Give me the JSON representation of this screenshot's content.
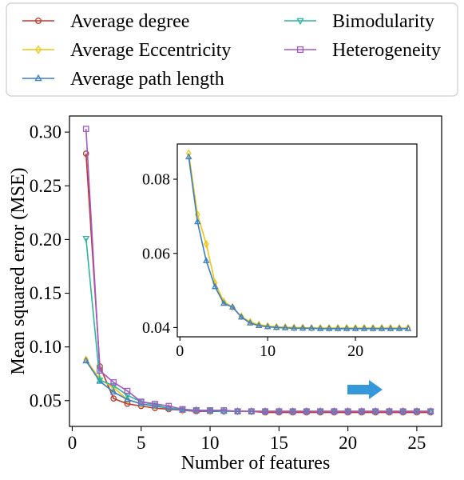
{
  "chart_data": [
    {
      "type": "line",
      "role": "main",
      "xlabel": "Number of features",
      "ylabel": "Mean squared error (MSE)",
      "xlim": [
        -0.2,
        26.8
      ],
      "ylim": [
        0.026,
        0.315
      ],
      "xticks": [
        0,
        5,
        10,
        15,
        20,
        25
      ],
      "yticks": [
        0.05,
        0.1,
        0.15,
        0.2,
        0.25,
        0.3
      ],
      "ytick_labels": [
        "0.05",
        "0.10",
        "0.15",
        "0.20",
        "0.25",
        "0.30"
      ],
      "grid": false,
      "legend_position": "above plot, two columns",
      "x": [
        1,
        2,
        3,
        4,
        5,
        6,
        7,
        8,
        9,
        10,
        11,
        12,
        13,
        14,
        15,
        16,
        17,
        18,
        19,
        20,
        21,
        22,
        23,
        24,
        25,
        26
      ],
      "series": [
        {
          "name": "Average degree",
          "color": "#c0392b",
          "marker": "circle",
          "values": [
            0.28,
            0.082,
            0.052,
            0.047,
            0.045,
            0.043,
            0.042,
            0.041,
            0.04,
            0.04,
            0.04,
            0.04,
            0.04,
            0.039,
            0.039,
            0.039,
            0.039,
            0.039,
            0.039,
            0.039,
            0.039,
            0.039,
            0.039,
            0.039,
            0.039,
            0.039
          ]
        },
        {
          "name": "Average Eccentricity",
          "color": "#f1c40f",
          "marker": "diamond",
          "values": [
            0.088,
            0.07,
            0.062,
            0.051,
            0.047,
            0.045,
            0.043,
            0.041,
            0.041,
            0.04,
            0.04,
            0.04,
            0.04,
            0.04,
            0.04,
            0.04,
            0.04,
            0.04,
            0.04,
            0.04,
            0.04,
            0.04,
            0.04,
            0.04,
            0.04,
            0.04
          ]
        },
        {
          "name": "Average path length",
          "color": "#3a7fc4",
          "marker": "triangle-up",
          "values": [
            0.087,
            0.068,
            0.058,
            0.051,
            0.047,
            0.045,
            0.043,
            0.041,
            0.041,
            0.04,
            0.04,
            0.04,
            0.04,
            0.04,
            0.04,
            0.04,
            0.04,
            0.04,
            0.04,
            0.04,
            0.04,
            0.04,
            0.04,
            0.04,
            0.04,
            0.04
          ]
        },
        {
          "name": "Bimodularity",
          "color": "#2bb5a0",
          "marker": "triangle-down",
          "values": [
            0.201,
            0.069,
            0.064,
            0.055,
            0.049,
            0.046,
            0.043,
            0.042,
            0.041,
            0.041,
            0.04,
            0.04,
            0.04,
            0.04,
            0.04,
            0.04,
            0.04,
            0.04,
            0.04,
            0.04,
            0.04,
            0.04,
            0.04,
            0.04,
            0.04,
            0.04
          ]
        },
        {
          "name": "Heterogeneity",
          "color": "#a259c4",
          "marker": "square",
          "values": [
            0.303,
            0.078,
            0.067,
            0.059,
            0.049,
            0.047,
            0.045,
            0.042,
            0.041,
            0.041,
            0.041,
            0.04,
            0.04,
            0.04,
            0.04,
            0.04,
            0.04,
            0.04,
            0.04,
            0.04,
            0.04,
            0.04,
            0.04,
            0.04,
            0.04,
            0.04
          ]
        }
      ]
    },
    {
      "type": "line",
      "role": "inset",
      "xlim": [
        -0.3,
        27.0
      ],
      "ylim": [
        0.0375,
        0.0895
      ],
      "xticks": [
        0,
        10,
        20
      ],
      "yticks": [
        0.04,
        0.06,
        0.08
      ],
      "ytick_labels": [
        "0.04",
        "0.06",
        "0.08"
      ],
      "x": [
        1,
        2,
        3,
        4,
        5,
        6,
        7,
        8,
        9,
        10,
        11,
        12,
        13,
        14,
        15,
        16,
        17,
        18,
        19,
        20,
        21,
        22,
        23,
        24,
        25,
        26
      ],
      "series": [
        {
          "name": "Average Eccentricity",
          "color": "#f1c40f",
          "marker": "diamond",
          "values": [
            0.087,
            0.0705,
            0.0625,
            0.052,
            0.047,
            0.0455,
            0.043,
            0.0415,
            0.0408,
            0.0404,
            0.0402,
            0.0401,
            0.04,
            0.04,
            0.0399,
            0.0399,
            0.0399,
            0.0399,
            0.0399,
            0.0399,
            0.0399,
            0.0399,
            0.0399,
            0.0399,
            0.0399,
            0.0399
          ]
        },
        {
          "name": "Average path length",
          "color": "#3a7fc4",
          "marker": "triangle-up",
          "values": [
            0.086,
            0.0685,
            0.058,
            0.051,
            0.0465,
            0.0455,
            0.0428,
            0.0412,
            0.0405,
            0.0402,
            0.04,
            0.0399,
            0.0398,
            0.0398,
            0.0398,
            0.0397,
            0.0397,
            0.0397,
            0.0397,
            0.0397,
            0.0397,
            0.0397,
            0.0397,
            0.0397,
            0.0397,
            0.0397
          ]
        }
      ]
    }
  ],
  "annotation": {
    "arrow_color": "#3498db",
    "direction": "right"
  }
}
